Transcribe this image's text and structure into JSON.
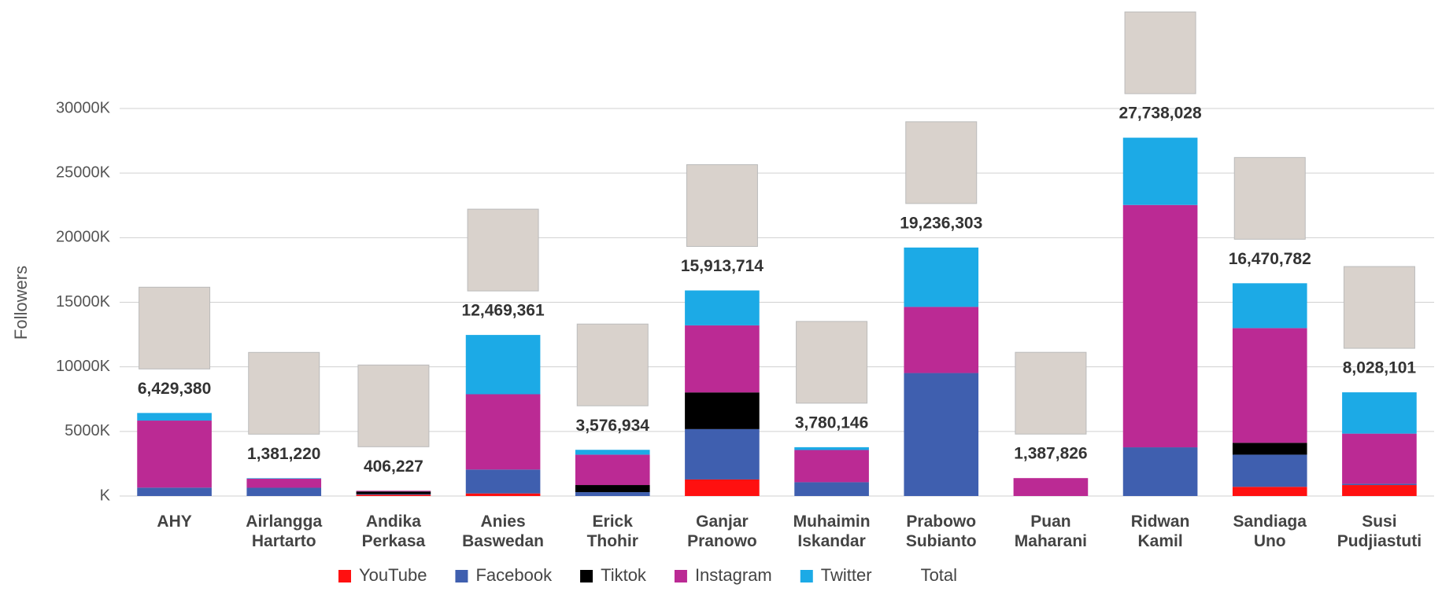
{
  "chart_data": {
    "type": "stacked-bar",
    "y_label": "Followers",
    "categories": [
      "AHY",
      "Airlangga Hartarto",
      "Andika Perkasa",
      "Anies Baswedan",
      "Erick Thohir",
      "Ganjar Pranowo",
      "Muhaimin Iskandar",
      "Prabowo Subianto",
      "Puan Maharani",
      "Ridwan Kamil",
      "Sandiaga Uno",
      "Susi Pudjiastuti"
    ],
    "series": [
      {
        "name": "YouTube",
        "color": "#ff1010",
        "values": [
          0,
          0,
          100000,
          200000,
          0,
          1280000,
          0,
          0,
          0,
          0,
          710000,
          850000
        ]
      },
      {
        "name": "Facebook",
        "color": "#3f5faf",
        "values": [
          650000,
          640000,
          50000,
          1850000,
          300000,
          3900000,
          1070000,
          9520000,
          0,
          3770000,
          2490000,
          100000
        ]
      },
      {
        "name": "Tiktok",
        "color": "#000000",
        "values": [
          0,
          0,
          200000,
          0,
          550000,
          2840000,
          0,
          0,
          0,
          0,
          920000,
          0
        ]
      },
      {
        "name": "Instagram",
        "color": "#bb2a94",
        "values": [
          5190000,
          700000,
          56000,
          5830000,
          2350000,
          5190000,
          2490000,
          5120000,
          1388000,
          18760000,
          8880000,
          3880000
        ]
      },
      {
        "name": "Twitter",
        "color": "#1caae6",
        "values": [
          589000,
          40000,
          0,
          4589000,
          377000,
          2704000,
          220000,
          4596000,
          0,
          5208000,
          3471000,
          3198000
        ]
      }
    ],
    "totals": {
      "name": "Total",
      "values": [
        6429380,
        1381220,
        406227,
        12469361,
        3576934,
        15913714,
        3780146,
        19236303,
        1387826,
        27738028,
        16470782,
        8028101
      ],
      "value_labels": [
        "6,429,380",
        "1,381,220",
        "406,227",
        "12,469,361",
        "3,576,934",
        "15,913,714",
        "3,780,146",
        "19,236,303",
        "1,387,826",
        "27,738,028",
        "16,470,782",
        "8,028,101"
      ]
    },
    "ylim": [
      0,
      30000000
    ],
    "yticks": [
      {
        "value": 0,
        "label": "K"
      },
      {
        "value": 5000000,
        "label": "5000K"
      },
      {
        "value": 10000000,
        "label": "10000K"
      },
      {
        "value": 15000000,
        "label": "15000K"
      },
      {
        "value": 20000000,
        "label": "20000K"
      },
      {
        "value": 25000000,
        "label": "25000K"
      },
      {
        "value": 30000000,
        "label": "30000K"
      }
    ],
    "grid": true,
    "legend": "bottom"
  }
}
